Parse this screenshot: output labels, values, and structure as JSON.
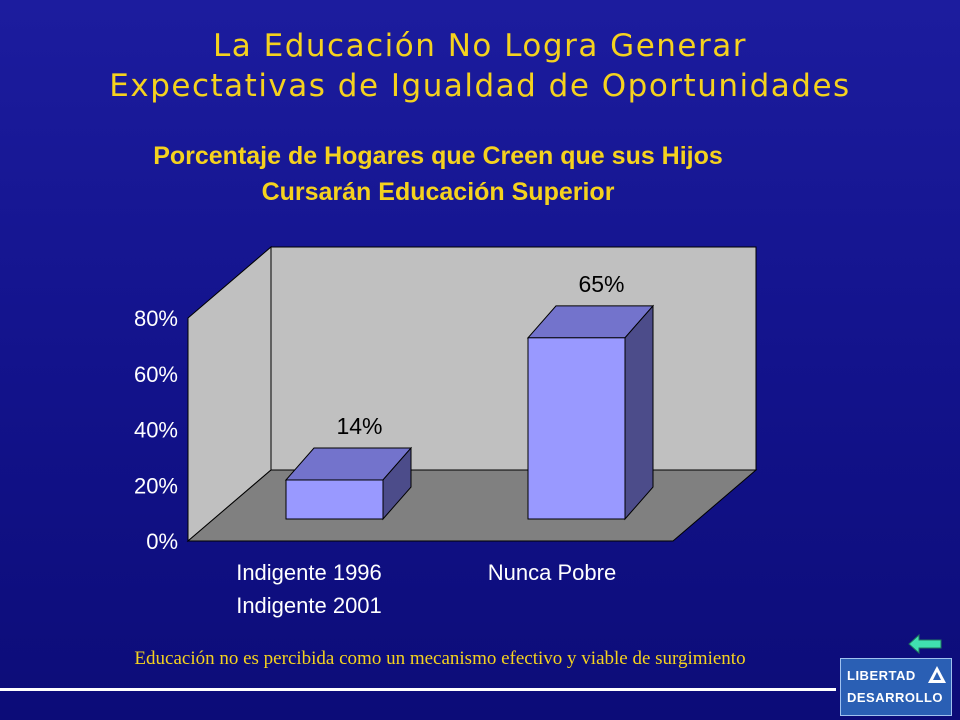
{
  "slide": {
    "title_line1": "La Educación No Logra Generar",
    "title_line2": "Expectativas de Igualdad de Oportunidades",
    "footer_note": "Educación no es percibida como un mecanismo efectivo y viable de surgimiento",
    "logo_line1": "LIBERTAD",
    "logo_line2": "DESARROLLO"
  },
  "icons": {
    "back": "left-arrow-icon",
    "logo": "triangle-logo-icon"
  },
  "chart_data": {
    "type": "bar",
    "three_d": true,
    "title_line1": "Porcentaje de Hogares que Creen que sus Hijos",
    "title_line2": "Cursarán Educación Superior",
    "categories": [
      [
        "Indigente 1996",
        "Indigente 2001"
      ],
      [
        "Nunca Pobre"
      ]
    ],
    "values": [
      14,
      65
    ],
    "data_labels": [
      "14%",
      "65%"
    ],
    "yticks": [
      "0%",
      "20%",
      "40%",
      "60%",
      "80%"
    ],
    "ylim": [
      0,
      80
    ],
    "grid": false,
    "colors": {
      "bar_front": "#9999ff",
      "bar_top": "#7373cc",
      "bar_side": "#4c4c8a",
      "back_wall": "#c0c0c0",
      "side_wall": "#c0c0c0",
      "floor": "#808080",
      "text": "#ffffff",
      "label": "#000000"
    }
  }
}
